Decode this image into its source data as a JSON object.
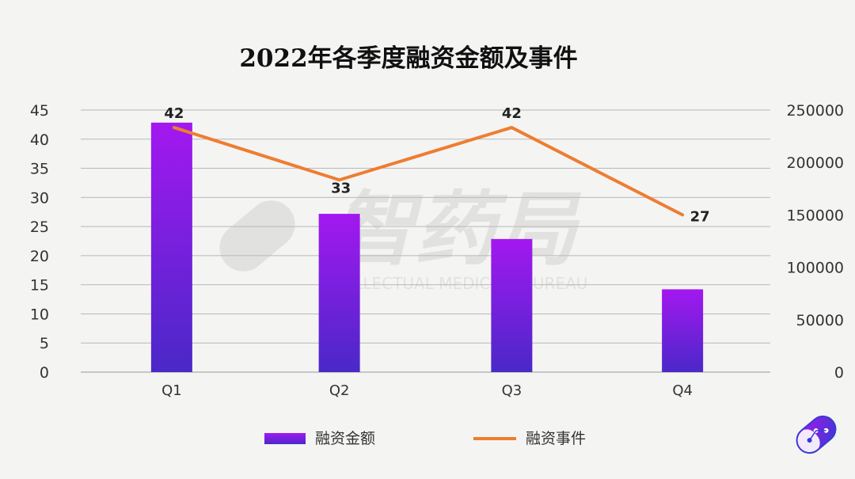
{
  "chart_data": {
    "type": "bar",
    "title": "2022年各季度融资金额及事件",
    "categories": [
      "Q1",
      "Q2",
      "Q3",
      "Q4"
    ],
    "series": [
      {
        "name": "融资金额",
        "type": "bar",
        "axis": "right",
        "values": [
          238000,
          151000,
          127000,
          79000
        ],
        "color_top": "#a318f0",
        "color_bottom": "#4a28c8"
      },
      {
        "name": "融资事件",
        "type": "line",
        "axis": "left",
        "values": [
          42,
          33,
          42,
          27
        ],
        "data_labels": [
          "42",
          "33",
          "42",
          "27"
        ],
        "color": "#ee7d31"
      }
    ],
    "y_left": {
      "range": [
        0,
        45
      ],
      "ticks": [
        "0",
        "5",
        "10",
        "15",
        "20",
        "25",
        "30",
        "35",
        "40",
        "45"
      ]
    },
    "y_right": {
      "range": [
        0,
        250000
      ],
      "ticks": [
        "0",
        "50000",
        "100000",
        "150000",
        "200000",
        "250000"
      ]
    },
    "grid": true,
    "legend_position": "bottom"
  },
  "watermark": {
    "brand": "智药局",
    "subtitle": "INTELLECTUAL MEDICINE BUREAU"
  },
  "logo": {
    "name": "capsule-logo-icon"
  }
}
